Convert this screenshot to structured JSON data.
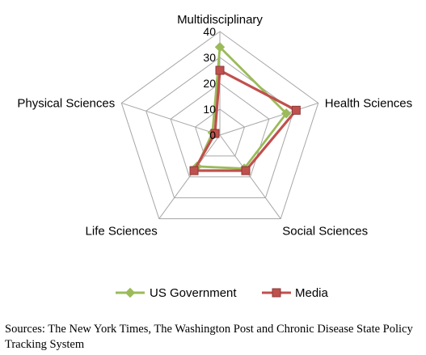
{
  "chart_data": {
    "type": "radar",
    "categories": [
      "Multidisciplinary",
      "Health Sciences",
      "Social Sciences",
      "Life Sciences",
      "Physical Sciences"
    ],
    "rlim": [
      0,
      40
    ],
    "ticks": [
      "0",
      "10",
      "20",
      "30",
      "40"
    ],
    "grid": true,
    "legend_position": "bottom",
    "series": [
      {
        "name": "US Government",
        "values": [
          34,
          27,
          16,
          15,
          3
        ],
        "color": "#9BBB59",
        "marker": "diamond"
      },
      {
        "name": "Media",
        "values": [
          25,
          31,
          17,
          17,
          2
        ],
        "color": "#C0504D",
        "marker": "square"
      }
    ]
  },
  "source_note": "Sources: The New York Times, The Washington Post and Chronic Disease State Policy Tracking System"
}
